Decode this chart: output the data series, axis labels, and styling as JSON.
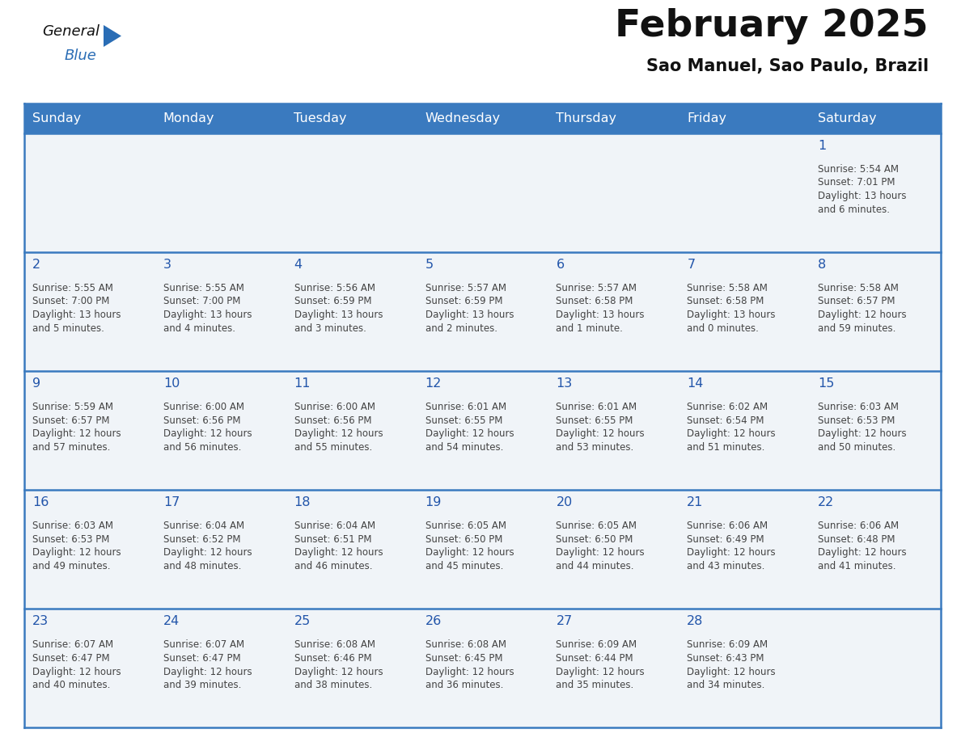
{
  "title": "February 2025",
  "subtitle": "Sao Manuel, Sao Paulo, Brazil",
  "header_color": "#3a7abf",
  "header_text_color": "#ffffff",
  "bg_color": "#ffffff",
  "cell_bg": "#f0f4f8",
  "day_headers": [
    "Sunday",
    "Monday",
    "Tuesday",
    "Wednesday",
    "Thursday",
    "Friday",
    "Saturday"
  ],
  "title_color": "#111111",
  "subtitle_color": "#111111",
  "day_num_color": "#2255aa",
  "info_color": "#444444",
  "line_color": "#3a7abf",
  "logo_general_color": "#111111",
  "logo_blue_color": "#2a6db5",
  "logo_triangle_color": "#2a6db5",
  "days": [
    {
      "day": 1,
      "col": 6,
      "row": 0,
      "sunrise": "5:54 AM",
      "sunset": "7:01 PM",
      "daylight_h": "13 hours",
      "daylight_m": "and 6 minutes."
    },
    {
      "day": 2,
      "col": 0,
      "row": 1,
      "sunrise": "5:55 AM",
      "sunset": "7:00 PM",
      "daylight_h": "13 hours",
      "daylight_m": "and 5 minutes."
    },
    {
      "day": 3,
      "col": 1,
      "row": 1,
      "sunrise": "5:55 AM",
      "sunset": "7:00 PM",
      "daylight_h": "13 hours",
      "daylight_m": "and 4 minutes."
    },
    {
      "day": 4,
      "col": 2,
      "row": 1,
      "sunrise": "5:56 AM",
      "sunset": "6:59 PM",
      "daylight_h": "13 hours",
      "daylight_m": "and 3 minutes."
    },
    {
      "day": 5,
      "col": 3,
      "row": 1,
      "sunrise": "5:57 AM",
      "sunset": "6:59 PM",
      "daylight_h": "13 hours",
      "daylight_m": "and 2 minutes."
    },
    {
      "day": 6,
      "col": 4,
      "row": 1,
      "sunrise": "5:57 AM",
      "sunset": "6:58 PM",
      "daylight_h": "13 hours",
      "daylight_m": "and 1 minute."
    },
    {
      "day": 7,
      "col": 5,
      "row": 1,
      "sunrise": "5:58 AM",
      "sunset": "6:58 PM",
      "daylight_h": "13 hours",
      "daylight_m": "and 0 minutes."
    },
    {
      "day": 8,
      "col": 6,
      "row": 1,
      "sunrise": "5:58 AM",
      "sunset": "6:57 PM",
      "daylight_h": "12 hours",
      "daylight_m": "and 59 minutes."
    },
    {
      "day": 9,
      "col": 0,
      "row": 2,
      "sunrise": "5:59 AM",
      "sunset": "6:57 PM",
      "daylight_h": "12 hours",
      "daylight_m": "and 57 minutes."
    },
    {
      "day": 10,
      "col": 1,
      "row": 2,
      "sunrise": "6:00 AM",
      "sunset": "6:56 PM",
      "daylight_h": "12 hours",
      "daylight_m": "and 56 minutes."
    },
    {
      "day": 11,
      "col": 2,
      "row": 2,
      "sunrise": "6:00 AM",
      "sunset": "6:56 PM",
      "daylight_h": "12 hours",
      "daylight_m": "and 55 minutes."
    },
    {
      "day": 12,
      "col": 3,
      "row": 2,
      "sunrise": "6:01 AM",
      "sunset": "6:55 PM",
      "daylight_h": "12 hours",
      "daylight_m": "and 54 minutes."
    },
    {
      "day": 13,
      "col": 4,
      "row": 2,
      "sunrise": "6:01 AM",
      "sunset": "6:55 PM",
      "daylight_h": "12 hours",
      "daylight_m": "and 53 minutes."
    },
    {
      "day": 14,
      "col": 5,
      "row": 2,
      "sunrise": "6:02 AM",
      "sunset": "6:54 PM",
      "daylight_h": "12 hours",
      "daylight_m": "and 51 minutes."
    },
    {
      "day": 15,
      "col": 6,
      "row": 2,
      "sunrise": "6:03 AM",
      "sunset": "6:53 PM",
      "daylight_h": "12 hours",
      "daylight_m": "and 50 minutes."
    },
    {
      "day": 16,
      "col": 0,
      "row": 3,
      "sunrise": "6:03 AM",
      "sunset": "6:53 PM",
      "daylight_h": "12 hours",
      "daylight_m": "and 49 minutes."
    },
    {
      "day": 17,
      "col": 1,
      "row": 3,
      "sunrise": "6:04 AM",
      "sunset": "6:52 PM",
      "daylight_h": "12 hours",
      "daylight_m": "and 48 minutes."
    },
    {
      "day": 18,
      "col": 2,
      "row": 3,
      "sunrise": "6:04 AM",
      "sunset": "6:51 PM",
      "daylight_h": "12 hours",
      "daylight_m": "and 46 minutes."
    },
    {
      "day": 19,
      "col": 3,
      "row": 3,
      "sunrise": "6:05 AM",
      "sunset": "6:50 PM",
      "daylight_h": "12 hours",
      "daylight_m": "and 45 minutes."
    },
    {
      "day": 20,
      "col": 4,
      "row": 3,
      "sunrise": "6:05 AM",
      "sunset": "6:50 PM",
      "daylight_h": "12 hours",
      "daylight_m": "and 44 minutes."
    },
    {
      "day": 21,
      "col": 5,
      "row": 3,
      "sunrise": "6:06 AM",
      "sunset": "6:49 PM",
      "daylight_h": "12 hours",
      "daylight_m": "and 43 minutes."
    },
    {
      "day": 22,
      "col": 6,
      "row": 3,
      "sunrise": "6:06 AM",
      "sunset": "6:48 PM",
      "daylight_h": "12 hours",
      "daylight_m": "and 41 minutes."
    },
    {
      "day": 23,
      "col": 0,
      "row": 4,
      "sunrise": "6:07 AM",
      "sunset": "6:47 PM",
      "daylight_h": "12 hours",
      "daylight_m": "and 40 minutes."
    },
    {
      "day": 24,
      "col": 1,
      "row": 4,
      "sunrise": "6:07 AM",
      "sunset": "6:47 PM",
      "daylight_h": "12 hours",
      "daylight_m": "and 39 minutes."
    },
    {
      "day": 25,
      "col": 2,
      "row": 4,
      "sunrise": "6:08 AM",
      "sunset": "6:46 PM",
      "daylight_h": "12 hours",
      "daylight_m": "and 38 minutes."
    },
    {
      "day": 26,
      "col": 3,
      "row": 4,
      "sunrise": "6:08 AM",
      "sunset": "6:45 PM",
      "daylight_h": "12 hours",
      "daylight_m": "and 36 minutes."
    },
    {
      "day": 27,
      "col": 4,
      "row": 4,
      "sunrise": "6:09 AM",
      "sunset": "6:44 PM",
      "daylight_h": "12 hours",
      "daylight_m": "and 35 minutes."
    },
    {
      "day": 28,
      "col": 5,
      "row": 4,
      "sunrise": "6:09 AM",
      "sunset": "6:43 PM",
      "daylight_h": "12 hours",
      "daylight_m": "and 34 minutes."
    }
  ]
}
